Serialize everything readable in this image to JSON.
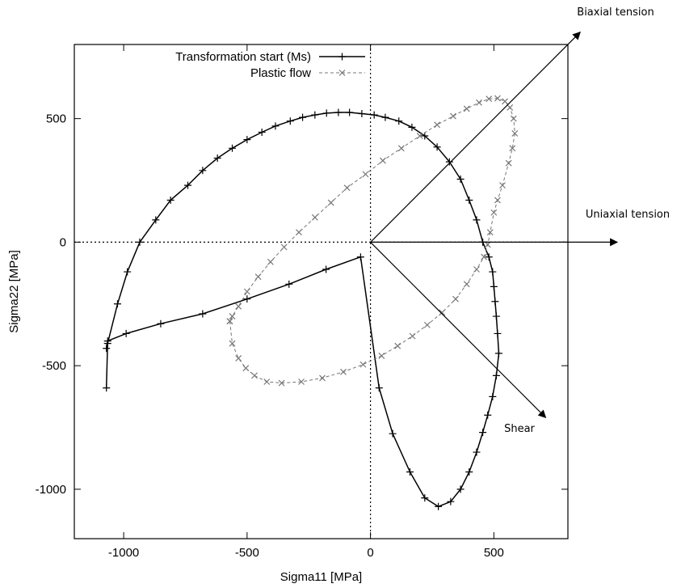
{
  "chart_data": {
    "type": "line",
    "title": "",
    "xlabel": "Sigma11 [MPa]",
    "ylabel": "Sigma22 [MPa]",
    "xlim": [
      -1200,
      800
    ],
    "ylim": [
      -1200,
      800
    ],
    "x_ticks": [
      -1000,
      -500,
      0,
      500
    ],
    "y_ticks": [
      -1000,
      -500,
      0,
      500
    ],
    "x_tick_labels": [
      "-1000",
      "-500",
      "0",
      "500"
    ],
    "y_tick_labels": [
      "-1000",
      "-500",
      "0",
      "500"
    ],
    "grid": false,
    "legend_position": "top-left",
    "series": [
      {
        "name": "Transformation start (Ms)",
        "style": "solid",
        "marker": "plus",
        "color": "#000000",
        "x": [
          -1070,
          -1065,
          -1025,
          -985,
          -935,
          -870,
          -810,
          -740,
          -680,
          -620,
          -560,
          -500,
          -440,
          -385,
          -325,
          -275,
          -225,
          -178,
          -130,
          -85,
          -35,
          15,
          60,
          115,
          168,
          220,
          270,
          320,
          365,
          400,
          430,
          455,
          480,
          495,
          500,
          505,
          510,
          515,
          520,
          510,
          495,
          475,
          455,
          430,
          400,
          365,
          325,
          275,
          220,
          160,
          90,
          35,
          -40,
          -180,
          -330,
          -500,
          -680,
          -850,
          -990,
          -1065,
          -1070
        ],
        "y": [
          -590,
          -410,
          -250,
          -120,
          0,
          90,
          170,
          230,
          290,
          340,
          380,
          415,
          445,
          470,
          490,
          505,
          515,
          522,
          525,
          525,
          520,
          515,
          505,
          490,
          465,
          430,
          385,
          325,
          255,
          170,
          90,
          0,
          -60,
          -120,
          -180,
          -240,
          -300,
          -370,
          -450,
          -540,
          -625,
          -700,
          -770,
          -850,
          -930,
          -1000,
          -1050,
          -1070,
          -1035,
          -930,
          -775,
          -590,
          -60,
          -110,
          -170,
          -230,
          -290,
          -330,
          -370,
          -400,
          -430
        ]
      },
      {
        "name": "Plastic flow",
        "style": "dashed",
        "marker": "cross",
        "color": "#777777",
        "x": [
          -570,
          -560,
          -535,
          -505,
          -470,
          -420,
          -360,
          -280,
          -195,
          -110,
          -30,
          45,
          110,
          170,
          230,
          290,
          345,
          390,
          430,
          460,
          475,
          485,
          500,
          515,
          535,
          560,
          575,
          585,
          580,
          565,
          545,
          515,
          480,
          440,
          390,
          335,
          270,
          200,
          125,
          50,
          -20,
          -95,
          -160,
          -225,
          -290,
          -350,
          -405,
          -455,
          -500,
          -535,
          -560,
          -570
        ],
        "y": [
          -320,
          -410,
          -470,
          -510,
          -540,
          -565,
          -570,
          -565,
          -550,
          -525,
          -495,
          -460,
          -420,
          -380,
          -335,
          -285,
          -230,
          -170,
          -110,
          -60,
          -10,
          40,
          120,
          170,
          230,
          320,
          380,
          440,
          500,
          545,
          570,
          582,
          580,
          565,
          540,
          510,
          475,
          430,
          380,
          330,
          275,
          220,
          160,
          100,
          40,
          -20,
          -80,
          -140,
          -200,
          -260,
          -300,
          -320
        ]
      }
    ],
    "arrows": [
      {
        "label": "Biaxial tension",
        "x": 850,
        "y": 850
      },
      {
        "label": "Uniaxial tension",
        "x": 1000,
        "y": 0
      },
      {
        "label": "Shear",
        "x": 710,
        "y": -710
      }
    ]
  }
}
